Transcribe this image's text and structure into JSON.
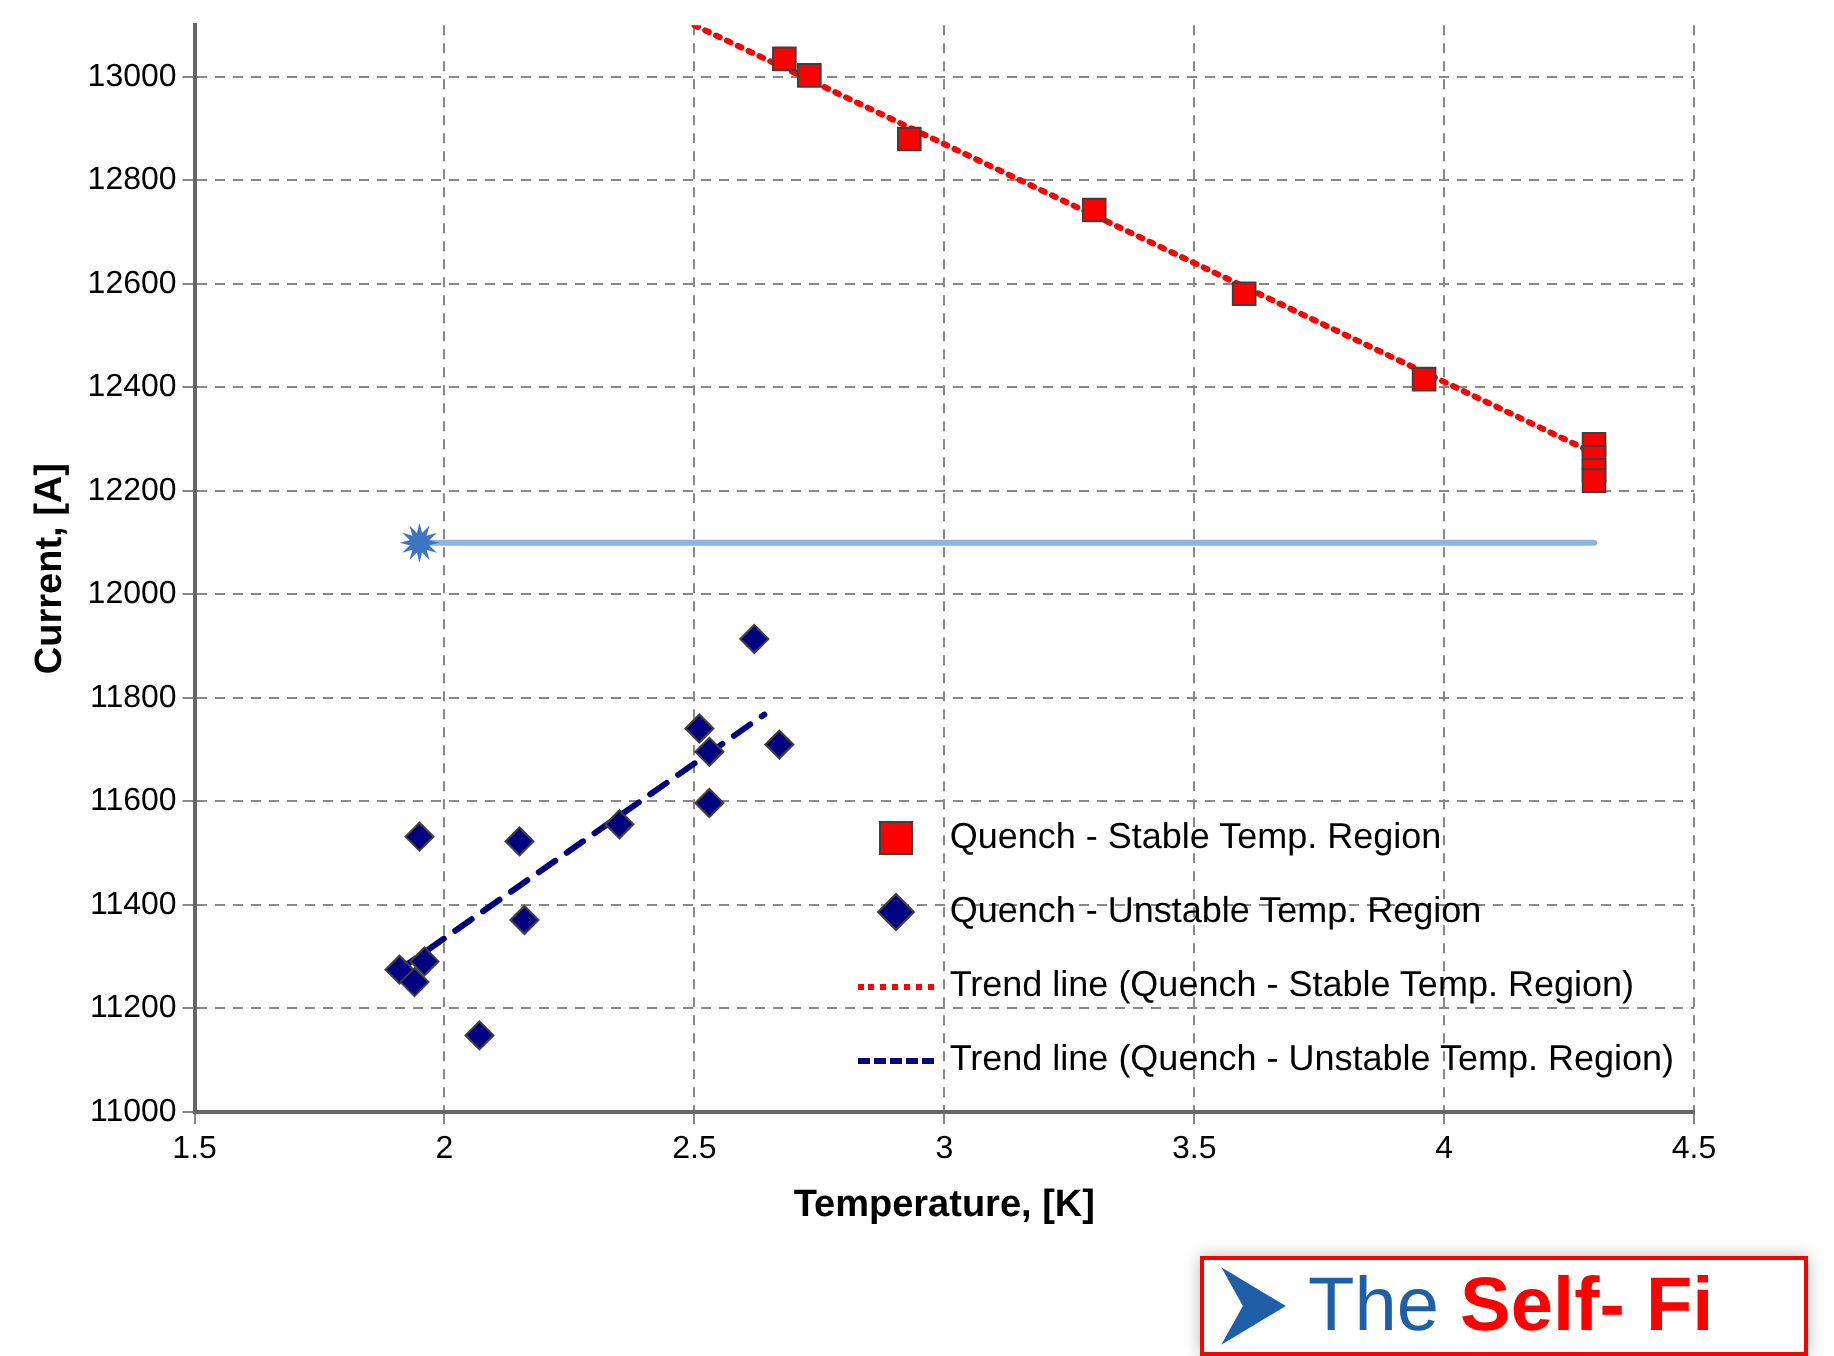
{
  "chart_data": {
    "type": "scatter",
    "xlabel": "Temperature, [K]",
    "ylabel": "Current, [A]",
    "xlim": [
      1.5,
      4.5
    ],
    "xticks": [
      1.5,
      2,
      2.5,
      3,
      3.5,
      4,
      4.5
    ],
    "ylim": [
      11000,
      13100
    ],
    "yticks": [
      11000,
      11200,
      11400,
      11600,
      11800,
      12000,
      12200,
      12400,
      12600,
      12800,
      13000
    ],
    "grid": true,
    "legend": "bottom right",
    "series": [
      {
        "name": "Quench - Stable Temp. Region",
        "marker": "square",
        "color": "#ff0000",
        "x": [
          2.68,
          2.73,
          2.93,
          3.3,
          3.6,
          3.96,
          4.3,
          4.3,
          4.3,
          4.3
        ],
        "values": [
          13035,
          13003,
          12880,
          12743,
          12581,
          12416,
          12290,
          12265,
          12240,
          12220
        ]
      },
      {
        "name": "Quench - Unstable Temp. Region",
        "marker": "diamond",
        "color": "#000080",
        "x": [
          2.62,
          2.51,
          2.53,
          2.67,
          2.53,
          2.35,
          1.95,
          2.15,
          2.16,
          1.91,
          1.96,
          1.94,
          2.07
        ],
        "values": [
          11914,
          11741,
          11696,
          11710,
          11597,
          11556,
          11532,
          11523,
          11371,
          11275,
          11291,
          11251,
          11148
        ]
      },
      {
        "name": "Trend line (Quench - Stable Temp. Region)",
        "type": "line",
        "marker": "none",
        "line_style": "dotted",
        "color": "#ff0000",
        "x": [
          2.5,
          4.3
        ],
        "values": [
          13100,
          12273
        ]
      },
      {
        "name": "Trend line (Quench - Unstable Temp. Region)",
        "type": "line",
        "marker": "none",
        "line_style": "dashed",
        "color": "#000080",
        "x": [
          1.91,
          2.64
        ],
        "values": [
          11275,
          11768
        ]
      },
      {
        "type": "line",
        "marker": "none",
        "line_style": "solid",
        "color": "#8eb4e3",
        "x": [
          1.95,
          4.3
        ],
        "values": [
          12100,
          12100
        ]
      },
      {
        "marker": "star",
        "color": "#3d74c4",
        "x": [
          1.95
        ],
        "values": [
          12100
        ]
      }
    ],
    "annotations": [
      "The Self- Fi"
    ]
  }
}
